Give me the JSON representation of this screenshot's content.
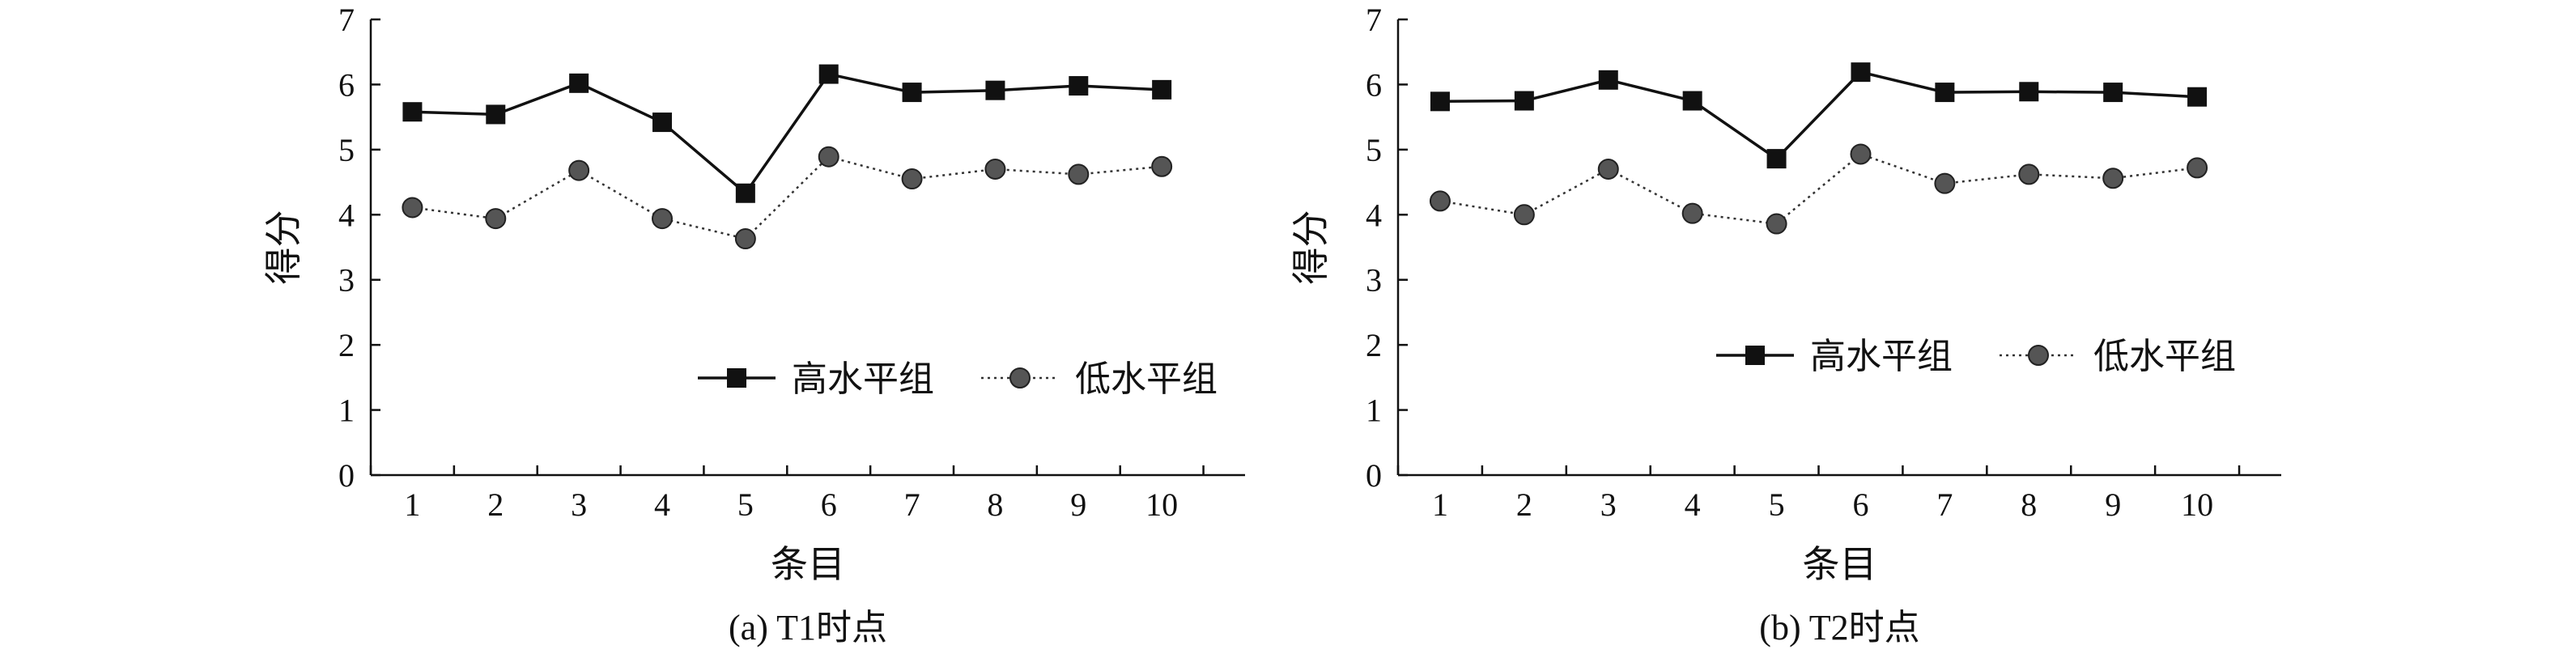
{
  "chart_data": [
    {
      "type": "line",
      "caption": "(a) T1时点",
      "xlabel": "条目",
      "ylabel": "得分",
      "categories": [
        "1",
        "2",
        "3",
        "4",
        "5",
        "6",
        "7",
        "8",
        "9",
        "10"
      ],
      "y_ticks": [
        "0",
        "1",
        "2",
        "3",
        "4",
        "5",
        "6",
        "7"
      ],
      "ylim": [
        0,
        7
      ],
      "grid": false,
      "legend_position": "lower-right",
      "series": [
        {
          "name": "高水平组",
          "values": [
            5.58,
            5.54,
            6.02,
            5.42,
            4.33,
            6.16,
            5.88,
            5.91,
            5.98,
            5.92
          ],
          "marker": "square",
          "line": "solid",
          "color": "#111111"
        },
        {
          "name": "低水平组",
          "values": [
            4.11,
            3.94,
            4.68,
            3.94,
            3.63,
            4.89,
            4.55,
            4.7,
            4.62,
            4.74
          ],
          "marker": "circle",
          "line": "dotted",
          "color": "#555555"
        }
      ]
    },
    {
      "type": "line",
      "caption": "(b) T2时点",
      "xlabel": "条目",
      "ylabel": "得分",
      "categories": [
        "1",
        "2",
        "3",
        "4",
        "5",
        "6",
        "7",
        "8",
        "9",
        "10"
      ],
      "y_ticks": [
        "0",
        "1",
        "2",
        "3",
        "4",
        "5",
        "6",
        "7"
      ],
      "ylim": [
        0,
        7
      ],
      "grid": false,
      "legend_position": "middle-right",
      "series": [
        {
          "name": "高水平组",
          "values": [
            5.74,
            5.75,
            6.07,
            5.75,
            4.86,
            6.19,
            5.88,
            5.89,
            5.88,
            5.81
          ],
          "marker": "square",
          "line": "solid",
          "color": "#111111"
        },
        {
          "name": "低水平组",
          "values": [
            4.21,
            4.0,
            4.7,
            4.02,
            3.86,
            4.93,
            4.48,
            4.62,
            4.56,
            4.72
          ],
          "marker": "circle",
          "line": "dotted",
          "color": "#555555"
        }
      ]
    }
  ]
}
